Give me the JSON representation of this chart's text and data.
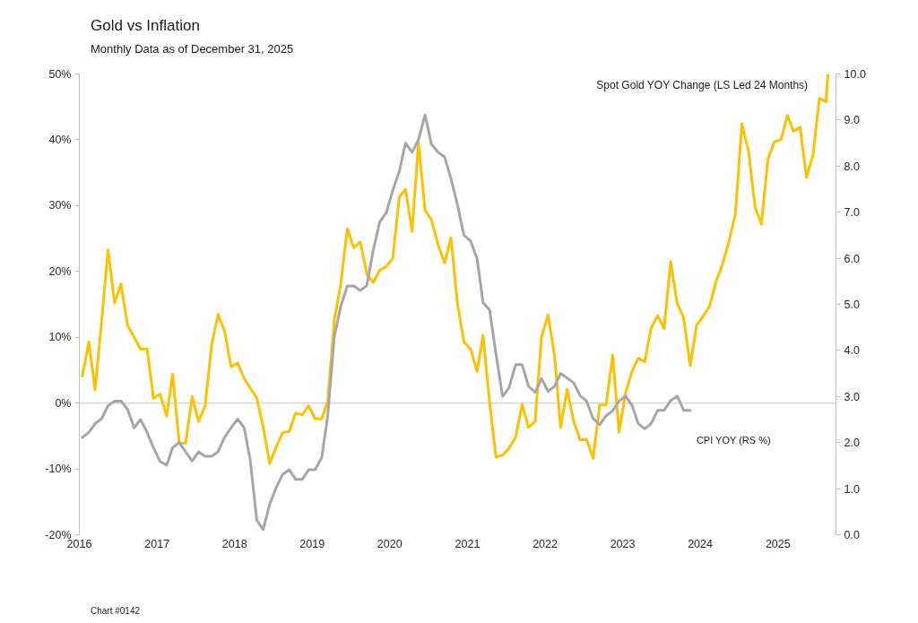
{
  "chart_data": {
    "type": "line",
    "title": "Gold vs Inflation",
    "subtitle": "Monthly Data as of December 31, 2025",
    "annotations": [
      "Chart #0142"
    ],
    "xlim": [
      "2016-01-01",
      "2025-10-01"
    ],
    "xticks": [
      "2016",
      "2017",
      "2018",
      "2019",
      "2020",
      "2021",
      "2022",
      "2023",
      "2024",
      "2025"
    ],
    "ylim": [
      -20,
      50
    ],
    "yticks": [
      {
        "value": -20,
        "label": "-20%"
      },
      {
        "value": -10,
        "label": "-10%"
      },
      {
        "value": 0,
        "label": "0%"
      },
      {
        "value": 10,
        "label": "10%"
      },
      {
        "value": 20,
        "label": "20%"
      },
      {
        "value": 30,
        "label": "30%"
      },
      {
        "value": 40,
        "label": "40%"
      },
      {
        "value": 50,
        "label": "50%"
      }
    ],
    "y2lim": [
      0,
      10
    ],
    "y2ticks": [
      {
        "value": 0,
        "label": "0.0"
      },
      {
        "value": 1,
        "label": "1.0"
      },
      {
        "value": 2,
        "label": "2.0"
      },
      {
        "value": 3,
        "label": "3.0"
      },
      {
        "value": 4,
        "label": "4.0"
      },
      {
        "value": 5,
        "label": "5.0"
      },
      {
        "value": 6,
        "label": "6.0"
      },
      {
        "value": 7,
        "label": "7.0"
      },
      {
        "value": 8,
        "label": "8.0"
      },
      {
        "value": 9,
        "label": "9.0"
      },
      {
        "value": 10,
        "label": "10.0"
      }
    ],
    "ref_lines": [
      {
        "axis": "y",
        "value": 0,
        "color": "#d9d9d9"
      }
    ],
    "series": [
      {
        "name": "Spot Gold YOY Change (LS Led 24 Months)",
        "color": "#ffc000",
        "x": [
          "2016-01-15",
          "2016-02-15",
          "2016-03-15",
          "2016-04-15",
          "2016-05-15",
          "2016-06-15",
          "2016-07-15",
          "2016-08-15",
          "2016-09-15",
          "2016-10-15",
          "2016-11-15",
          "2016-12-15",
          "2017-01-15",
          "2017-02-15",
          "2017-03-15",
          "2017-04-15",
          "2017-05-15",
          "2017-06-15",
          "2017-07-15",
          "2017-08-15",
          "2017-09-15",
          "2017-10-15",
          "2017-11-15",
          "2017-12-15",
          "2018-01-15",
          "2018-02-15",
          "2018-03-15",
          "2018-04-15",
          "2018-05-15",
          "2018-06-15",
          "2018-07-15",
          "2018-08-15",
          "2018-09-15",
          "2018-10-15",
          "2018-11-15",
          "2018-12-15",
          "2019-01-15",
          "2019-02-15",
          "2019-03-15",
          "2019-04-15",
          "2019-05-15",
          "2019-06-15",
          "2019-07-15",
          "2019-08-15",
          "2019-09-15",
          "2019-10-15",
          "2019-11-15",
          "2019-12-15",
          "2020-01-15",
          "2020-02-15",
          "2020-03-15",
          "2020-04-15",
          "2020-05-15",
          "2020-06-15",
          "2020-07-15",
          "2020-08-15",
          "2020-09-15",
          "2020-10-15",
          "2020-11-15",
          "2020-12-15",
          "2021-01-15",
          "2021-02-15",
          "2021-03-15",
          "2021-04-15",
          "2021-05-15",
          "2021-06-15",
          "2021-07-15",
          "2021-08-15",
          "2021-09-15",
          "2021-10-15",
          "2021-11-15",
          "2021-12-15",
          "2022-01-15",
          "2022-02-15",
          "2022-03-15",
          "2022-04-15",
          "2022-05-15",
          "2022-06-15",
          "2022-07-15",
          "2022-08-15",
          "2022-09-15",
          "2022-10-15",
          "2022-11-15",
          "2022-12-15",
          "2023-01-15",
          "2023-02-15",
          "2023-03-15",
          "2023-04-15",
          "2023-05-15",
          "2023-06-15",
          "2023-07-15",
          "2023-08-15",
          "2023-09-15",
          "2023-10-15",
          "2023-11-15",
          "2023-12-15",
          "2024-01-15",
          "2024-02-15",
          "2024-03-15",
          "2024-04-15",
          "2024-05-15",
          "2024-06-15",
          "2024-07-15",
          "2024-08-15",
          "2024-09-15",
          "2024-10-15",
          "2024-11-15",
          "2024-12-15",
          "2025-01-15",
          "2025-02-15",
          "2025-03-15",
          "2025-04-15",
          "2025-05-15",
          "2025-06-15",
          "2025-07-15",
          "2025-08-15",
          "2025-08-24"
        ],
        "values": [
          4.1,
          9.3,
          2.0,
          12.5,
          23.3,
          15.2,
          18.1,
          11.8,
          10.0,
          8.2,
          8.2,
          0.7,
          1.4,
          -2.0,
          4.4,
          -6.1,
          -6.1,
          1.0,
          -2.8,
          -0.4,
          8.9,
          13.5,
          10.9,
          5.5,
          6.1,
          3.7,
          2.3,
          0.8,
          -3.6,
          -9.2,
          -6.7,
          -4.5,
          -4.3,
          -1.5,
          -1.8,
          -0.4,
          -2.4,
          -2.4,
          0.3,
          12.5,
          18.0,
          26.5,
          23.6,
          24.5,
          19.6,
          18.3,
          20.2,
          20.7,
          22.0,
          31.3,
          32.5,
          26.1,
          39.6,
          29.3,
          27.9,
          24.1,
          21.3,
          25.1,
          15.0,
          9.3,
          8.2,
          4.8,
          10.3,
          0.0,
          -8.2,
          -7.9,
          -6.9,
          -5.2,
          -0.2,
          -3.7,
          -2.8,
          10.0,
          13.4,
          7.1,
          -3.7,
          2.1,
          -2.7,
          -5.6,
          -5.5,
          -8.4,
          -0.3,
          -0.3,
          7.3,
          -4.4,
          1.6,
          4.9,
          6.8,
          6.3,
          11.4,
          13.3,
          11.3,
          21.5,
          15.1,
          13.0,
          5.7,
          11.8,
          13.2,
          14.8,
          18.4,
          21.1,
          24.5,
          28.8,
          42.4,
          38.4,
          29.8,
          27.2,
          37.1,
          39.7,
          40.0,
          43.7,
          41.3,
          41.9,
          34.3,
          37.7,
          46.3,
          45.8,
          49.9
        ]
      },
      {
        "name": "CPI YOY (RS %)",
        "color": "#a6a6a6",
        "axis": "y2",
        "x": [
          "2016-01-15",
          "2016-02-15",
          "2016-03-15",
          "2016-04-15",
          "2016-05-15",
          "2016-06-15",
          "2016-07-15",
          "2016-08-15",
          "2016-09-15",
          "2016-10-15",
          "2016-11-15",
          "2016-12-15",
          "2017-01-15",
          "2017-02-15",
          "2017-03-15",
          "2017-04-15",
          "2017-05-15",
          "2017-06-15",
          "2017-07-15",
          "2017-08-15",
          "2017-09-15",
          "2017-10-15",
          "2017-11-15",
          "2017-12-15",
          "2018-01-15",
          "2018-02-15",
          "2018-03-15",
          "2018-04-15",
          "2018-05-15",
          "2018-06-15",
          "2018-07-15",
          "2018-08-15",
          "2018-09-15",
          "2018-10-15",
          "2018-11-15",
          "2018-12-15",
          "2019-01-15",
          "2019-02-15",
          "2019-03-15",
          "2019-04-15",
          "2019-05-15",
          "2019-06-15",
          "2019-07-15",
          "2019-08-15",
          "2019-09-15",
          "2019-10-15",
          "2019-11-15",
          "2019-12-15",
          "2020-01-15",
          "2020-02-15",
          "2020-03-15",
          "2020-04-15",
          "2020-05-15",
          "2020-06-15",
          "2020-07-15",
          "2020-08-15",
          "2020-09-15",
          "2020-10-15",
          "2020-11-15",
          "2020-12-15",
          "2021-01-15",
          "2021-02-15",
          "2021-03-15",
          "2021-04-15",
          "2021-05-15",
          "2021-06-15",
          "2021-07-15",
          "2021-08-15",
          "2021-09-15",
          "2021-10-15",
          "2021-11-15",
          "2021-12-15",
          "2022-01-15",
          "2022-02-15",
          "2022-03-15",
          "2022-04-15",
          "2022-05-15",
          "2022-06-15",
          "2022-07-15",
          "2022-08-15",
          "2022-09-15",
          "2022-10-15",
          "2022-11-15",
          "2022-12-15",
          "2023-01-15",
          "2023-02-15",
          "2023-03-15",
          "2023-04-15",
          "2023-05-15",
          "2023-06-15",
          "2023-07-15",
          "2023-08-15",
          "2023-09-15",
          "2023-10-15",
          "2023-11-15"
        ],
        "values": [
          2.11,
          2.22,
          2.41,
          2.52,
          2.8,
          2.9,
          2.9,
          2.72,
          2.32,
          2.5,
          2.22,
          1.89,
          1.59,
          1.51,
          1.89,
          2.0,
          1.8,
          1.6,
          1.8,
          1.7,
          1.7,
          1.8,
          2.12,
          2.32,
          2.51,
          2.32,
          1.63,
          0.32,
          0.11,
          0.66,
          1.02,
          1.31,
          1.41,
          1.2,
          1.2,
          1.41,
          1.41,
          1.68,
          2.58,
          4.3,
          4.95,
          5.4,
          5.4,
          5.3,
          5.41,
          6.17,
          6.79,
          6.98,
          7.47,
          7.89,
          8.5,
          8.3,
          8.57,
          9.11,
          8.48,
          8.3,
          8.2,
          7.73,
          7.15,
          6.5,
          6.38,
          5.99,
          5.04,
          4.88,
          3.92,
          3.0,
          3.19,
          3.69,
          3.69,
          3.22,
          3.09,
          3.39,
          3.11,
          3.22,
          3.5,
          3.4,
          3.3,
          3.02,
          2.9,
          2.52,
          2.39,
          2.58,
          2.69,
          2.9,
          3.01,
          2.8,
          2.41,
          2.3,
          2.41,
          2.7,
          2.7,
          2.91,
          3.01,
          2.7,
          2.7
        ]
      }
    ]
  }
}
